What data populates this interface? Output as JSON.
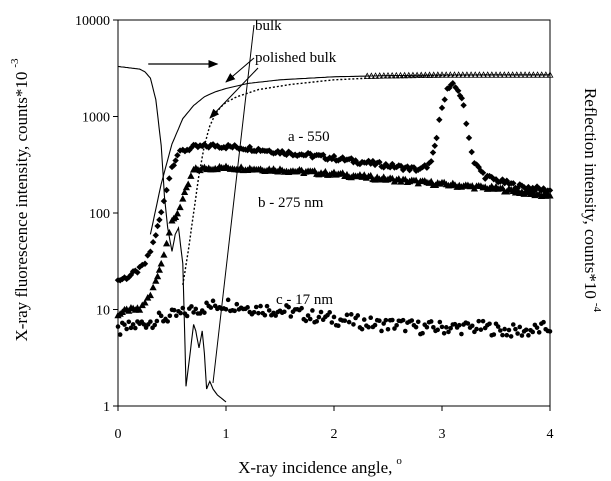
{
  "chart_data": {
    "type": "scatter",
    "y_scale": "log",
    "x_range": [
      0,
      4
    ],
    "y_range": [
      1,
      10000
    ],
    "x_ticks": [
      "0",
      "1",
      "2",
      "3",
      "4"
    ],
    "y_ticks": [
      "1",
      "10",
      "100",
      "1000",
      "10000"
    ],
    "grid": false,
    "xlabel": "X-ray incidence angle,",
    "xlabel_sup": "o",
    "ylabel": "X-ray fluorescence intensity, counts*10",
    "ylabel_sup": "-3",
    "y2label": "Reflection intensity, counts*10",
    "y2label_sup": "-4",
    "annotations": {
      "bulk": "bulk",
      "polished": "polished bulk",
      "a": "a - 550",
      "b": "b - 275 nm",
      "c": "c - 17 nm"
    },
    "series": [
      {
        "key": "bulk",
        "style": "line-triangles",
        "x": [
          0.3,
          0.4,
          0.5,
          0.6,
          0.7,
          0.8,
          0.9,
          1.0,
          1.2,
          1.5,
          2.0,
          2.5,
          3.0,
          3.5,
          4.0
        ],
        "y": [
          60,
          200,
          520,
          950,
          1300,
          1600,
          1800,
          1950,
          2200,
          2400,
          2580,
          2650,
          2700,
          2700,
          2700
        ]
      },
      {
        "key": "polished",
        "style": "dotted-line",
        "x": [
          0.6,
          0.65,
          0.7,
          0.75,
          0.8,
          0.85,
          0.9,
          0.95,
          1.0,
          1.1,
          1.3,
          1.6,
          2.0,
          2.5,
          3.0,
          3.5,
          4.0
        ],
        "y": [
          18,
          40,
          100,
          250,
          500,
          800,
          1050,
          1250,
          1400,
          1600,
          1900,
          2150,
          2400,
          2550,
          2650,
          2700,
          2700
        ]
      },
      {
        "key": "a",
        "style": "diamonds",
        "x": [
          0.0,
          0.1,
          0.2,
          0.25,
          0.3,
          0.35,
          0.4,
          0.45,
          0.5,
          0.55,
          0.6,
          0.7,
          0.8,
          0.9,
          1.0,
          1.2,
          1.5,
          2.0,
          2.5,
          2.8,
          2.9,
          2.95,
          3.0,
          3.05,
          3.1,
          3.15,
          3.2,
          3.25,
          3.3,
          3.4,
          3.5,
          3.7,
          4.0
        ],
        "y": [
          20,
          22,
          26,
          30,
          40,
          60,
          100,
          180,
          300,
          400,
          440,
          480,
          490,
          500,
          490,
          470,
          430,
          370,
          310,
          280,
          330,
          600,
          1300,
          1900,
          2100,
          1900,
          1300,
          600,
          330,
          240,
          220,
          190,
          170
        ]
      },
      {
        "key": "b",
        "style": "triangles",
        "x": [
          0.0,
          0.1,
          0.2,
          0.25,
          0.3,
          0.35,
          0.4,
          0.45,
          0.5,
          0.55,
          0.6,
          0.65,
          0.7,
          0.8,
          0.9,
          1.0,
          1.2,
          1.5,
          2.0,
          2.5,
          3.0,
          3.5,
          4.0
        ],
        "y": [
          9,
          10,
          10,
          12,
          14,
          20,
          30,
          50,
          80,
          100,
          140,
          200,
          280,
          290,
          295,
          295,
          290,
          280,
          255,
          225,
          200,
          180,
          150
        ]
      },
      {
        "key": "c",
        "style": "dots",
        "x": [
          0.0,
          0.1,
          0.2,
          0.3,
          0.4,
          0.5,
          0.6,
          0.7,
          0.8,
          0.9,
          1.0,
          1.1,
          1.2,
          1.4,
          1.6,
          1.8,
          2.0,
          2.2,
          2.4,
          2.6,
          2.8,
          3.0,
          3.2,
          3.4,
          3.6,
          3.8,
          4.0
        ],
        "y": [
          6,
          6.5,
          7,
          7.5,
          8,
          8.5,
          9,
          10,
          10.5,
          11,
          11.5,
          11,
          10.5,
          10,
          9.5,
          8.5,
          8,
          7.5,
          7,
          7,
          6.5,
          6.5,
          6.5,
          6.5,
          6,
          6,
          6.5
        ]
      },
      {
        "key": "reflection",
        "style": "thin-line",
        "x": [
          0.0,
          0.1,
          0.2,
          0.25,
          0.3,
          0.35,
          0.4,
          0.43,
          0.46,
          0.5,
          0.53,
          0.56,
          0.6,
          0.63,
          0.66,
          0.7,
          0.72,
          0.75,
          0.78,
          0.8,
          0.82,
          0.85,
          0.88,
          0.92,
          0.96,
          1.0
        ],
        "y": [
          3300,
          3200,
          3100,
          2900,
          2500,
          1500,
          500,
          150,
          70,
          40,
          60,
          70,
          30,
          1.6,
          3,
          7,
          6,
          4,
          6,
          3.5,
          1.5,
          1.8,
          1.5,
          1.3,
          1.2,
          1.1
        ]
      }
    ]
  }
}
